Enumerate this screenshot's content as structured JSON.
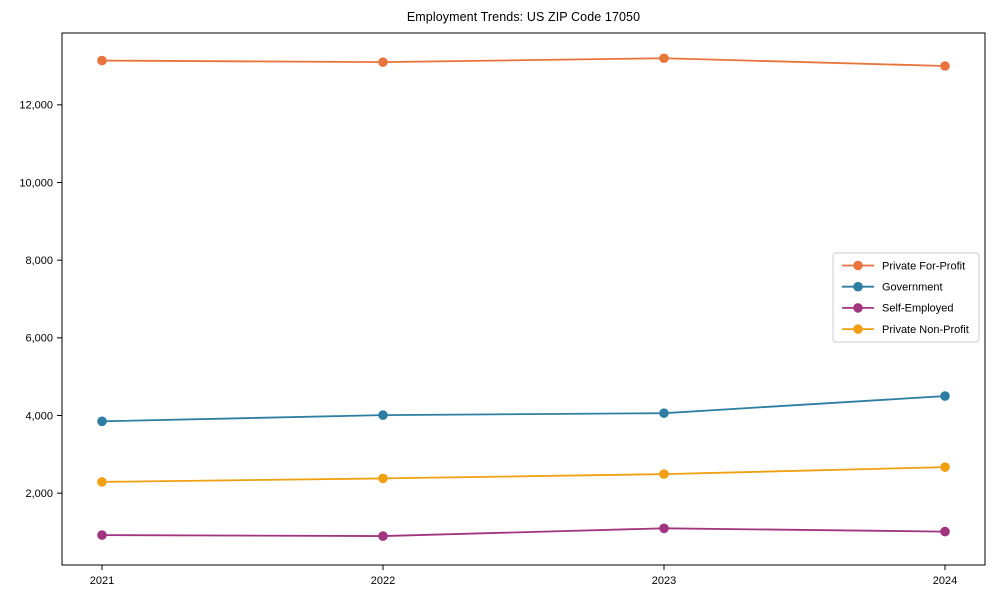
{
  "figure": {
    "background": "#ffffff",
    "axis_color": "#000000",
    "legend_border_color": "#cccccc",
    "legend_background": "#ffffff"
  },
  "chart_data": {
    "type": "line",
    "title": "Employment Trends: US ZIP Code 17050",
    "x_categories": [
      "2021",
      "2022",
      "2023",
      "2024"
    ],
    "series": [
      {
        "name": "Private For-Profit",
        "color": "#E8743C",
        "marker": "circle",
        "values": [
          13140,
          13100,
          13200,
          13000
        ]
      },
      {
        "name": "Government",
        "color": "#2E7EA3",
        "marker": "circle",
        "values": [
          3850,
          4010,
          4060,
          4500
        ]
      },
      {
        "name": "Self-Employed",
        "color": "#A23580",
        "marker": "circle",
        "values": [
          920,
          895,
          1095,
          1010
        ]
      },
      {
        "name": "Private Non-Profit",
        "color": "#F0A010",
        "marker": "circle",
        "values": [
          2290,
          2380,
          2490,
          2670
        ]
      }
    ],
    "ylim": [
      150,
      13850
    ],
    "yticks": [
      2000,
      4000,
      6000,
      8000,
      10000,
      12000
    ],
    "ytick_labels": [
      "2,000",
      "4,000",
      "6,000",
      "8,000",
      "10,000",
      "12,000"
    ],
    "xlabel": "",
    "ylabel": "",
    "grid": false,
    "legend": {
      "position": "center right",
      "entries": [
        "Private For-Profit",
        "Government",
        "Self-Employed",
        "Private Non-Profit"
      ]
    }
  }
}
